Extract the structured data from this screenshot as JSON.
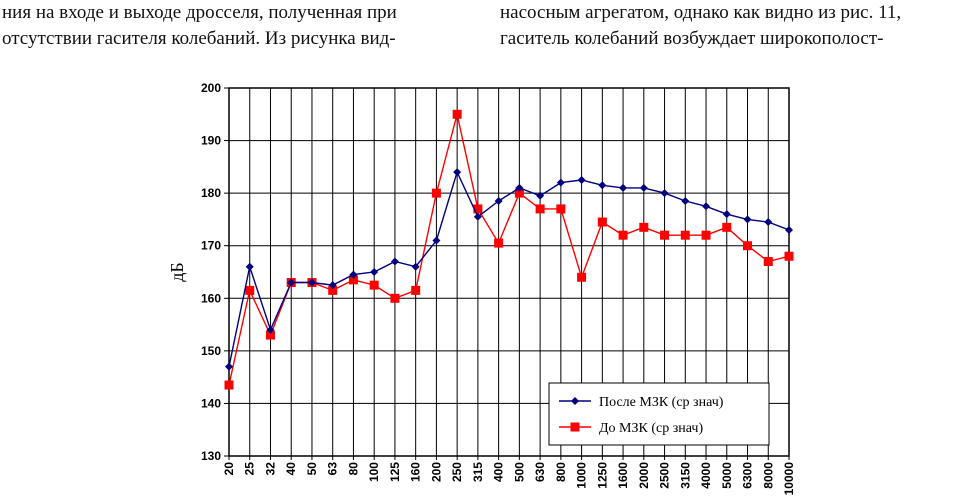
{
  "text": {
    "left_lines": [
      "ния на входе и выходе дросселя, полученная при",
      "отсутствии гасителя колебаний. Из рисунка вид-"
    ],
    "right_lines": [
      "насосным агрегатом, однако как видно из рис. 11,",
      "гаситель колебаний возбуждает широкополост-"
    ]
  },
  "chart_data": {
    "type": "line",
    "categories": [
      "20",
      "25",
      "32",
      "40",
      "50",
      "63",
      "80",
      "100",
      "125",
      "160",
      "200",
      "250",
      "315",
      "400",
      "500",
      "630",
      "800",
      "1000",
      "1250",
      "1600",
      "2000",
      "2500",
      "3150",
      "4000",
      "5000",
      "6300",
      "8000",
      "10000"
    ],
    "ylabel": "дБ",
    "ylim": [
      130,
      200
    ],
    "yticks": [
      130,
      140,
      150,
      160,
      170,
      180,
      190,
      200
    ],
    "grid": true,
    "legend": "bottom-right",
    "series": [
      {
        "name": "После МЗК (ср знач)",
        "color": "#000080",
        "marker": "diamond",
        "values": [
          147,
          166,
          154,
          163,
          163,
          162.5,
          164.5,
          165,
          167,
          166,
          171,
          184,
          175.5,
          178.5,
          181,
          179.5,
          182,
          182.5,
          181.5,
          181,
          181,
          180,
          178.5,
          177.5,
          176,
          175,
          174.5,
          173
        ]
      },
      {
        "name": "До МЗК (ср знач)",
        "color": "#ff0000",
        "marker": "square",
        "values": [
          143.5,
          161.5,
          153,
          163,
          163,
          161.5,
          163.5,
          162.5,
          160,
          161.5,
          180,
          195,
          177,
          170.5,
          180,
          177,
          177,
          164,
          174.5,
          172,
          173.5,
          172,
          172,
          172,
          173.5,
          170,
          167,
          168
        ]
      }
    ]
  }
}
